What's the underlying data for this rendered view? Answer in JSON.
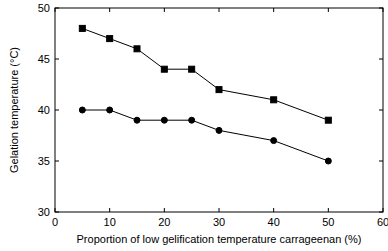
{
  "chart_data": {
    "type": "line",
    "x_label": "Proportion of low gelification temperature carrageenan (%)",
    "y_label": "Gelation temperature (°C)",
    "x": [
      5,
      10,
      15,
      20,
      25,
      30,
      40,
      50
    ],
    "series": [
      {
        "color": "#000000",
        "marker": "square",
        "values": [
          48,
          47,
          46,
          44,
          44,
          42,
          41,
          39
        ]
      },
      {
        "color": "#000000",
        "marker": "circle",
        "values": [
          40,
          40,
          39,
          39,
          39,
          38,
          37,
          35
        ]
      }
    ],
    "xlim": [
      0,
      60
    ],
    "xticks": [
      0,
      10,
      20,
      30,
      40,
      50,
      60
    ],
    "ylim": [
      30,
      50
    ],
    "yticks": [
      30,
      35,
      40,
      45,
      50
    ],
    "grid": false
  }
}
